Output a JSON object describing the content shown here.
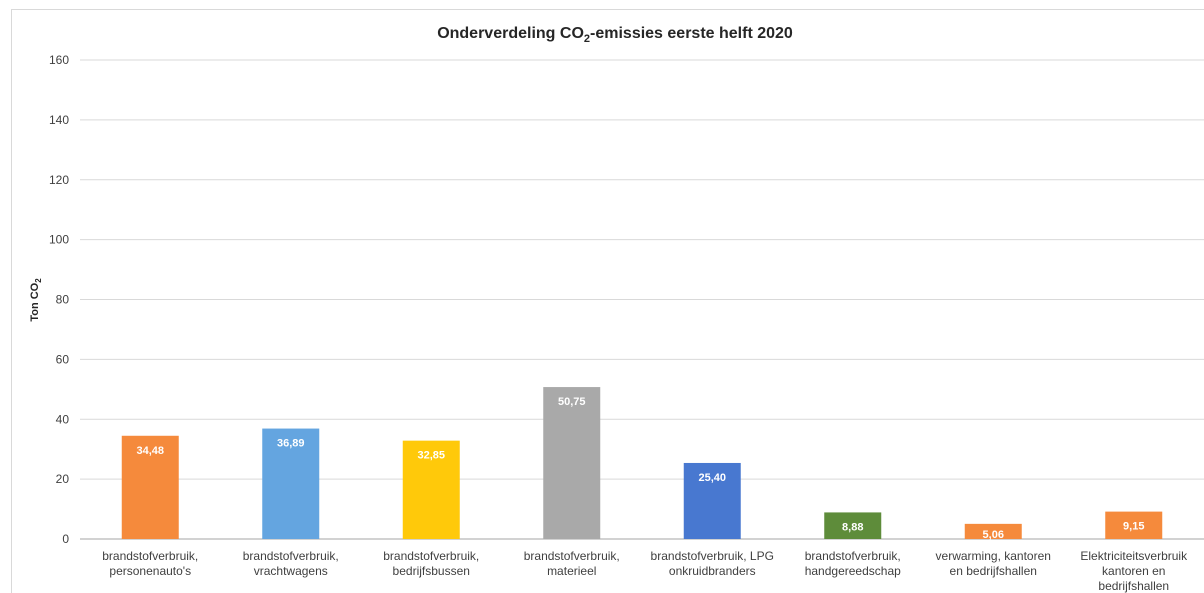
{
  "chart_data": {
    "type": "bar",
    "title": "Onderverdeling CO",
    "title_sub": "2",
    "title_rest": "-emissies eerste helft 2020",
    "ylabel": "Ton CO",
    "ylabel_sub": "2",
    "xlabel": "",
    "ylim": [
      0,
      160
    ],
    "yticks": [
      "0",
      "20",
      "40",
      "60",
      "80",
      "100",
      "120",
      "140",
      "160"
    ],
    "grid": true,
    "categories": [
      [
        "brandstofverbruik,",
        "personenauto's"
      ],
      [
        "brandstofverbruik,",
        "vrachtwagens"
      ],
      [
        "brandstofverbruik,",
        "bedrijfsbussen"
      ],
      [
        "brandstofverbruik,",
        "materieel"
      ],
      [
        "brandstofverbruik, LPG",
        "onkruidbranders"
      ],
      [
        "brandstofverbruik,",
        "handgereedschap"
      ],
      [
        "verwarming, kantoren",
        "en bedrijfshallen"
      ],
      [
        "Elektriciteitsverbruik",
        "kantoren en",
        "bedrijfshallen"
      ]
    ],
    "values": [
      34.48,
      36.89,
      32.85,
      50.75,
      25.4,
      8.88,
      5.06,
      9.15
    ],
    "data_labels": [
      "34,48",
      "36,89",
      "32,85",
      "50,75",
      "25,40",
      "8,88",
      "5,06",
      "9,15"
    ],
    "colors": [
      "#f58a3c",
      "#64a5e0",
      "#ffc90a",
      "#a9a9a9",
      "#4878d0",
      "#5e8c3a",
      "#f58a3c",
      "#f58a3c"
    ],
    "label_colors": [
      "#ffffff",
      "#ffffff",
      "#ffffff",
      "#ffffff",
      "#ffffff",
      "#ffffff",
      "#ffffff",
      "#ffffff"
    ]
  }
}
